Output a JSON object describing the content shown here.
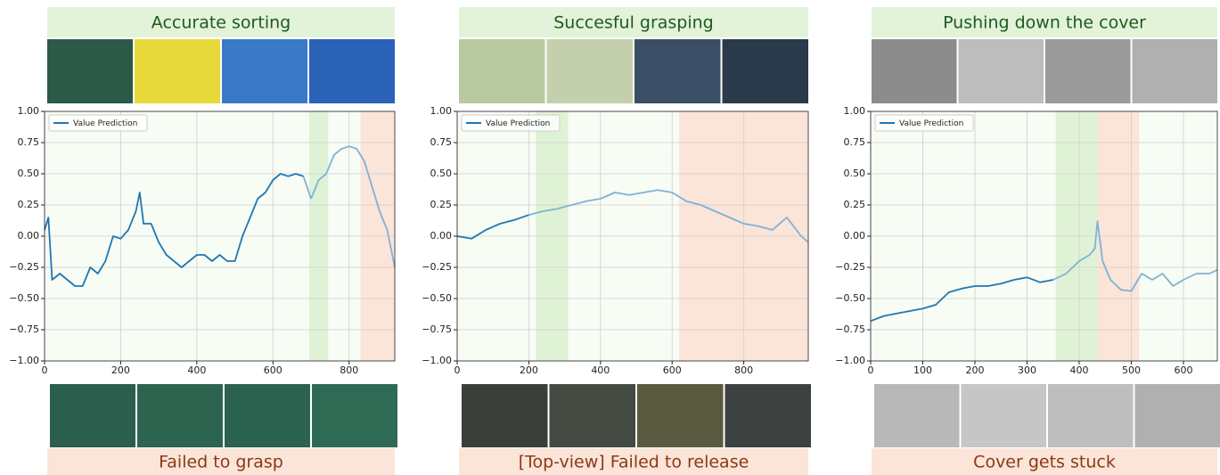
{
  "chart_data": [
    {
      "type": "line",
      "title": "Accurate sorting",
      "caption": "Failed to grasp",
      "series": [
        {
          "name": "Value Prediction",
          "color": "#1f77b4",
          "highlight_color": "#7fb2d6",
          "x": [
            0,
            10,
            20,
            40,
            60,
            80,
            100,
            120,
            140,
            160,
            180,
            200,
            220,
            240,
            250,
            260,
            280,
            300,
            320,
            340,
            360,
            380,
            400,
            420,
            440,
            460,
            480,
            500,
            520,
            540,
            560,
            580,
            600,
            620,
            640,
            660,
            680,
            700,
            720,
            740,
            760,
            780,
            800,
            820,
            840,
            860,
            880,
            900,
            920
          ],
          "values": [
            0.05,
            0.15,
            -0.35,
            -0.3,
            -0.35,
            -0.4,
            -0.4,
            -0.25,
            -0.3,
            -0.2,
            0.0,
            -0.02,
            0.05,
            0.2,
            0.35,
            0.1,
            0.1,
            -0.05,
            -0.15,
            -0.2,
            -0.25,
            -0.2,
            -0.15,
            -0.15,
            -0.2,
            -0.15,
            -0.2,
            -0.2,
            0.0,
            0.15,
            0.3,
            0.35,
            0.45,
            0.5,
            0.48,
            0.5,
            0.48,
            0.3,
            0.45,
            0.5,
            0.65,
            0.7,
            0.72,
            0.7,
            0.6,
            0.4,
            0.2,
            0.05,
            -0.25
          ]
        }
      ],
      "spans": [
        {
          "x": [
            695,
            745
          ],
          "color": "#dff2d6"
        },
        {
          "x": [
            830,
            920
          ],
          "color": "#fbe4d8"
        }
      ],
      "xlim": [
        0,
        920
      ],
      "xticks": [
        0,
        200,
        400,
        600,
        800
      ],
      "ylim": [
        -1,
        1
      ],
      "yticks": [
        {
          "value": -1,
          "label": "−1.00"
        },
        {
          "value": -0.75,
          "label": "−0.75"
        },
        {
          "value": -0.5,
          "label": "−0.50"
        },
        {
          "value": -0.25,
          "label": "−0.25"
        },
        {
          "value": 0,
          "label": "0.00"
        },
        {
          "value": 0.25,
          "label": "0.25"
        },
        {
          "value": 0.5,
          "label": "0.50"
        },
        {
          "value": 0.75,
          "label": "0.75"
        },
        {
          "value": 1,
          "label": "1.00"
        }
      ],
      "grid": true,
      "legend": "upper left"
    },
    {
      "type": "line",
      "title": "Succesful grasping",
      "caption": "[Top-view] Failed to release",
      "series": [
        {
          "name": "Value Prediction",
          "color": "#1f77b4",
          "highlight_color": "#7fb2d6",
          "x": [
            0,
            40,
            80,
            120,
            160,
            200,
            240,
            280,
            320,
            360,
            400,
            440,
            480,
            520,
            560,
            600,
            640,
            680,
            720,
            760,
            800,
            840,
            880,
            920,
            960,
            980
          ],
          "values": [
            0,
            -0.02,
            0.05,
            0.1,
            0.13,
            0.17,
            0.2,
            0.22,
            0.25,
            0.28,
            0.3,
            0.35,
            0.33,
            0.35,
            0.37,
            0.35,
            0.28,
            0.25,
            0.2,
            0.15,
            0.1,
            0.08,
            0.05,
            0.15,
            0.0,
            -0.05
          ]
        }
      ],
      "spans": [
        {
          "x": [
            220,
            310
          ],
          "color": "#dff2d6"
        },
        {
          "x": [
            620,
            980
          ],
          "color": "#fbe4d8"
        }
      ],
      "xlim": [
        0,
        980
      ],
      "xticks": [
        0,
        200,
        400,
        600,
        800
      ],
      "ylim": [
        -1,
        1
      ],
      "yticks": [
        {
          "value": -1,
          "label": "−1.00"
        },
        {
          "value": -0.75,
          "label": "−0.75"
        },
        {
          "value": -0.5,
          "label": "−0.50"
        },
        {
          "value": -0.25,
          "label": "−0.25"
        },
        {
          "value": 0,
          "label": "0.00"
        },
        {
          "value": 0.25,
          "label": "0.25"
        },
        {
          "value": 0.5,
          "label": "0.50"
        },
        {
          "value": 0.75,
          "label": "0.75"
        },
        {
          "value": 1,
          "label": "1.00"
        }
      ],
      "grid": true,
      "legend": "upper left"
    },
    {
      "type": "line",
      "title": "Pushing down the cover",
      "caption": "Cover gets stuck",
      "series": [
        {
          "name": "Value Prediction",
          "color": "#1f77b4",
          "highlight_color": "#7fb2d6",
          "x": [
            0,
            25,
            50,
            75,
            100,
            125,
            150,
            175,
            200,
            225,
            250,
            275,
            300,
            325,
            350,
            375,
            400,
            420,
            430,
            435,
            445,
            460,
            480,
            500,
            520,
            540,
            560,
            580,
            600,
            625,
            650,
            665
          ],
          "values": [
            -0.68,
            -0.64,
            -0.62,
            -0.6,
            -0.58,
            -0.55,
            -0.45,
            -0.42,
            -0.4,
            -0.4,
            -0.38,
            -0.35,
            -0.33,
            -0.37,
            -0.35,
            -0.3,
            -0.2,
            -0.15,
            -0.1,
            0.12,
            -0.2,
            -0.35,
            -0.43,
            -0.44,
            -0.3,
            -0.35,
            -0.3,
            -0.4,
            -0.35,
            -0.3,
            -0.3,
            -0.27
          ]
        }
      ],
      "spans": [
        {
          "x": [
            355,
            435
          ],
          "color": "#dff2d6"
        },
        {
          "x": [
            435,
            515
          ],
          "color": "#fbe4d8"
        }
      ],
      "xlim": [
        0,
        665
      ],
      "xticks": [
        0,
        100,
        200,
        300,
        400,
        500,
        600
      ],
      "ylim": [
        -1,
        1
      ],
      "yticks": [
        {
          "value": -1,
          "label": "−1.00"
        },
        {
          "value": -0.75,
          "label": "−0.75"
        },
        {
          "value": -0.5,
          "label": "−0.50"
        },
        {
          "value": -0.25,
          "label": "−0.25"
        },
        {
          "value": 0,
          "label": "0.00"
        },
        {
          "value": 0.25,
          "label": "0.25"
        },
        {
          "value": 0.5,
          "label": "0.50"
        },
        {
          "value": 0.75,
          "label": "0.75"
        },
        {
          "value": 1,
          "label": "1.00"
        }
      ],
      "grid": true,
      "legend": "upper left"
    }
  ]
}
